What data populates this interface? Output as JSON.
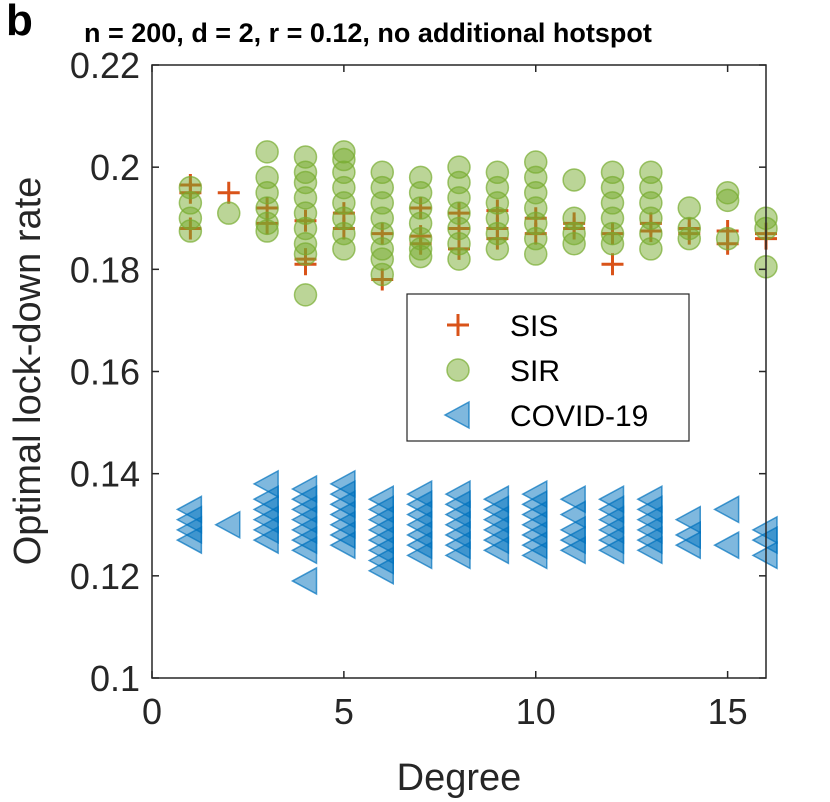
{
  "panel_label": "b",
  "chart_data": {
    "type": "scatter",
    "title": "n = 200, d = 2, r = 0.12, no additional hotspot",
    "xlabel": "Degree",
    "ylabel": "Optimal lock-down rate",
    "xlim": [
      0,
      16
    ],
    "ylim": [
      0.1,
      0.22
    ],
    "xticks": [
      0,
      5,
      10,
      15
    ],
    "xtick_labels": [
      "0",
      "5",
      "10",
      "15"
    ],
    "yticks": [
      0.1,
      0.12,
      0.14,
      0.16,
      0.18,
      0.2,
      0.22
    ],
    "ytick_labels": [
      "0.1",
      "0.12",
      "0.14",
      "0.16",
      "0.18",
      "0.2",
      "0.22"
    ],
    "grid": false,
    "legend_position": "center-right",
    "colors": {
      "SIS": "#D95319",
      "SIR": "#77AC30",
      "COVID-19": "#0072BD"
    },
    "series": [
      {
        "name": "SIS",
        "marker": "plus",
        "points": [
          [
            1,
            0.1965
          ],
          [
            1,
            0.195
          ],
          [
            1,
            0.188
          ],
          [
            2,
            0.195
          ],
          [
            3,
            0.192
          ],
          [
            3,
            0.189
          ],
          [
            4,
            0.1895
          ],
          [
            4,
            0.182
          ],
          [
            4,
            0.181
          ],
          [
            5,
            0.191
          ],
          [
            5,
            0.188
          ],
          [
            6,
            0.187
          ],
          [
            6,
            0.178
          ],
          [
            7,
            0.192
          ],
          [
            7,
            0.1865
          ],
          [
            7,
            0.185
          ],
          [
            8,
            0.191
          ],
          [
            8,
            0.188
          ],
          [
            8,
            0.184
          ],
          [
            9,
            0.1915
          ],
          [
            9,
            0.188
          ],
          [
            9,
            0.186
          ],
          [
            10,
            0.19
          ],
          [
            10,
            0.187
          ],
          [
            11,
            0.189
          ],
          [
            11,
            0.188
          ],
          [
            12,
            0.187
          ],
          [
            12,
            0.181
          ],
          [
            13,
            0.189
          ],
          [
            13,
            0.1875
          ],
          [
            14,
            0.188
          ],
          [
            14,
            0.187
          ],
          [
            15,
            0.1875
          ],
          [
            15,
            0.185
          ],
          [
            16,
            0.187
          ],
          [
            16,
            0.186
          ]
        ]
      },
      {
        "name": "SIR",
        "marker": "circle",
        "points": [
          [
            1,
            0.196
          ],
          [
            1,
            0.193
          ],
          [
            1,
            0.19
          ],
          [
            1,
            0.1875
          ],
          [
            2,
            0.191
          ],
          [
            3,
            0.203
          ],
          [
            3,
            0.198
          ],
          [
            3,
            0.195
          ],
          [
            3,
            0.192
          ],
          [
            3,
            0.189
          ],
          [
            3,
            0.1875
          ],
          [
            4,
            0.202
          ],
          [
            4,
            0.199
          ],
          [
            4,
            0.197
          ],
          [
            4,
            0.194
          ],
          [
            4,
            0.191
          ],
          [
            4,
            0.188
          ],
          [
            4,
            0.185
          ],
          [
            4,
            0.183
          ],
          [
            4,
            0.175
          ],
          [
            5,
            0.203
          ],
          [
            5,
            0.2015
          ],
          [
            5,
            0.199
          ],
          [
            5,
            0.196
          ],
          [
            5,
            0.193
          ],
          [
            5,
            0.19
          ],
          [
            5,
            0.187
          ],
          [
            5,
            0.184
          ],
          [
            6,
            0.199
          ],
          [
            6,
            0.196
          ],
          [
            6,
            0.193
          ],
          [
            6,
            0.19
          ],
          [
            6,
            0.187
          ],
          [
            6,
            0.184
          ],
          [
            6,
            0.182
          ],
          [
            6,
            0.179
          ],
          [
            7,
            0.198
          ],
          [
            7,
            0.195
          ],
          [
            7,
            0.192
          ],
          [
            7,
            0.189
          ],
          [
            7,
            0.186
          ],
          [
            7,
            0.184
          ],
          [
            7,
            0.1825
          ],
          [
            8,
            0.2
          ],
          [
            8,
            0.197
          ],
          [
            8,
            0.194
          ],
          [
            8,
            0.191
          ],
          [
            8,
            0.188
          ],
          [
            8,
            0.185
          ],
          [
            8,
            0.182
          ],
          [
            9,
            0.199
          ],
          [
            9,
            0.196
          ],
          [
            9,
            0.193
          ],
          [
            9,
            0.19
          ],
          [
            9,
            0.187
          ],
          [
            9,
            0.184
          ],
          [
            10,
            0.201
          ],
          [
            10,
            0.198
          ],
          [
            10,
            0.195
          ],
          [
            10,
            0.192
          ],
          [
            10,
            0.189
          ],
          [
            10,
            0.186
          ],
          [
            10,
            0.183
          ],
          [
            11,
            0.1975
          ],
          [
            11,
            0.19
          ],
          [
            11,
            0.187
          ],
          [
            11,
            0.185
          ],
          [
            12,
            0.199
          ],
          [
            12,
            0.196
          ],
          [
            12,
            0.193
          ],
          [
            12,
            0.19
          ],
          [
            12,
            0.187
          ],
          [
            12,
            0.185
          ],
          [
            13,
            0.199
          ],
          [
            13,
            0.196
          ],
          [
            13,
            0.193
          ],
          [
            13,
            0.19
          ],
          [
            13,
            0.187
          ],
          [
            13,
            0.184
          ],
          [
            14,
            0.192
          ],
          [
            14,
            0.188
          ],
          [
            14,
            0.186
          ],
          [
            15,
            0.195
          ],
          [
            15,
            0.1935
          ],
          [
            15,
            0.186
          ],
          [
            16,
            0.19
          ],
          [
            16,
            0.188
          ],
          [
            16,
            0.1805
          ]
        ]
      },
      {
        "name": "COVID-19",
        "marker": "triangle-left",
        "points": [
          [
            1,
            0.133
          ],
          [
            1,
            0.131
          ],
          [
            1,
            0.129
          ],
          [
            1,
            0.127
          ],
          [
            2,
            0.13
          ],
          [
            3,
            0.138
          ],
          [
            3,
            0.135
          ],
          [
            3,
            0.133
          ],
          [
            3,
            0.131
          ],
          [
            3,
            0.129
          ],
          [
            3,
            0.127
          ],
          [
            4,
            0.137
          ],
          [
            4,
            0.135
          ],
          [
            4,
            0.133
          ],
          [
            4,
            0.131
          ],
          [
            4,
            0.129
          ],
          [
            4,
            0.127
          ],
          [
            4,
            0.125
          ],
          [
            4,
            0.119
          ],
          [
            5,
            0.138
          ],
          [
            5,
            0.136
          ],
          [
            5,
            0.134
          ],
          [
            5,
            0.132
          ],
          [
            5,
            0.13
          ],
          [
            5,
            0.128
          ],
          [
            5,
            0.126
          ],
          [
            6,
            0.135
          ],
          [
            6,
            0.133
          ],
          [
            6,
            0.131
          ],
          [
            6,
            0.129
          ],
          [
            6,
            0.127
          ],
          [
            6,
            0.125
          ],
          [
            6,
            0.123
          ],
          [
            6,
            0.121
          ],
          [
            7,
            0.136
          ],
          [
            7,
            0.134
          ],
          [
            7,
            0.132
          ],
          [
            7,
            0.13
          ],
          [
            7,
            0.128
          ],
          [
            7,
            0.126
          ],
          [
            7,
            0.124
          ],
          [
            8,
            0.136
          ],
          [
            8,
            0.134
          ],
          [
            8,
            0.132
          ],
          [
            8,
            0.13
          ],
          [
            8,
            0.128
          ],
          [
            8,
            0.126
          ],
          [
            8,
            0.124
          ],
          [
            9,
            0.135
          ],
          [
            9,
            0.133
          ],
          [
            9,
            0.131
          ],
          [
            9,
            0.129
          ],
          [
            9,
            0.127
          ],
          [
            9,
            0.125
          ],
          [
            10,
            0.136
          ],
          [
            10,
            0.134
          ],
          [
            10,
            0.132
          ],
          [
            10,
            0.13
          ],
          [
            10,
            0.128
          ],
          [
            10,
            0.126
          ],
          [
            10,
            0.124
          ],
          [
            11,
            0.135
          ],
          [
            11,
            0.132
          ],
          [
            11,
            0.129
          ],
          [
            11,
            0.127
          ],
          [
            11,
            0.125
          ],
          [
            12,
            0.135
          ],
          [
            12,
            0.133
          ],
          [
            12,
            0.131
          ],
          [
            12,
            0.129
          ],
          [
            12,
            0.127
          ],
          [
            12,
            0.125
          ],
          [
            13,
            0.135
          ],
          [
            13,
            0.133
          ],
          [
            13,
            0.131
          ],
          [
            13,
            0.129
          ],
          [
            13,
            0.127
          ],
          [
            13,
            0.125
          ],
          [
            14,
            0.131
          ],
          [
            14,
            0.128
          ],
          [
            14,
            0.126
          ],
          [
            15,
            0.133
          ],
          [
            15,
            0.126
          ],
          [
            16,
            0.129
          ],
          [
            16,
            0.127
          ],
          [
            16,
            0.124
          ]
        ]
      }
    ]
  }
}
